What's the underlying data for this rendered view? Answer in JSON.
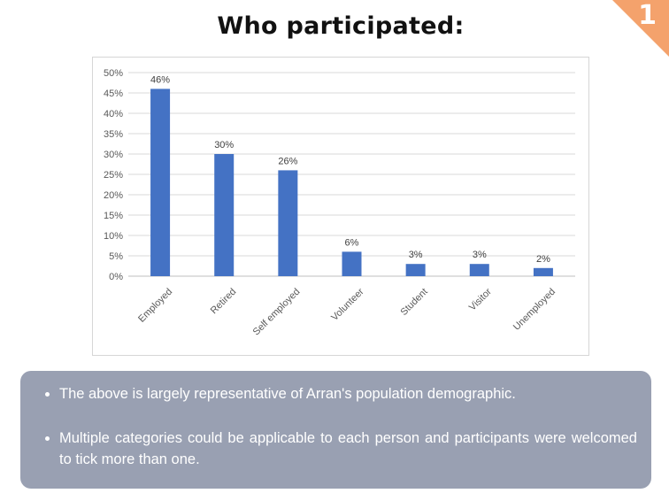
{
  "page": {
    "title": "Who participated:",
    "page_number": "1",
    "accent_color": "#f4a26c"
  },
  "chart_data": {
    "type": "bar",
    "categories": [
      "Employed",
      "Retired",
      "Self employed",
      "Volunteer",
      "Student",
      "Visitor",
      "Unemployed"
    ],
    "values": [
      46,
      30,
      26,
      6,
      3,
      3,
      2
    ],
    "data_labels": [
      "46%",
      "30%",
      "26%",
      "6%",
      "3%",
      "3%",
      "2%"
    ],
    "y_ticks": [
      "0%",
      "5%",
      "10%",
      "15%",
      "20%",
      "25%",
      "30%",
      "35%",
      "40%",
      "45%",
      "50%"
    ],
    "ylim": [
      0,
      50
    ],
    "grid": true,
    "bar_color": "#4472c4",
    "title": "",
    "xlabel": "",
    "ylabel": ""
  },
  "notes": {
    "items": [
      "The above is largely representative of Arran's population demographic.",
      "Multiple categories could be applicable to each person and participants were welcomed to tick more than one."
    ]
  }
}
